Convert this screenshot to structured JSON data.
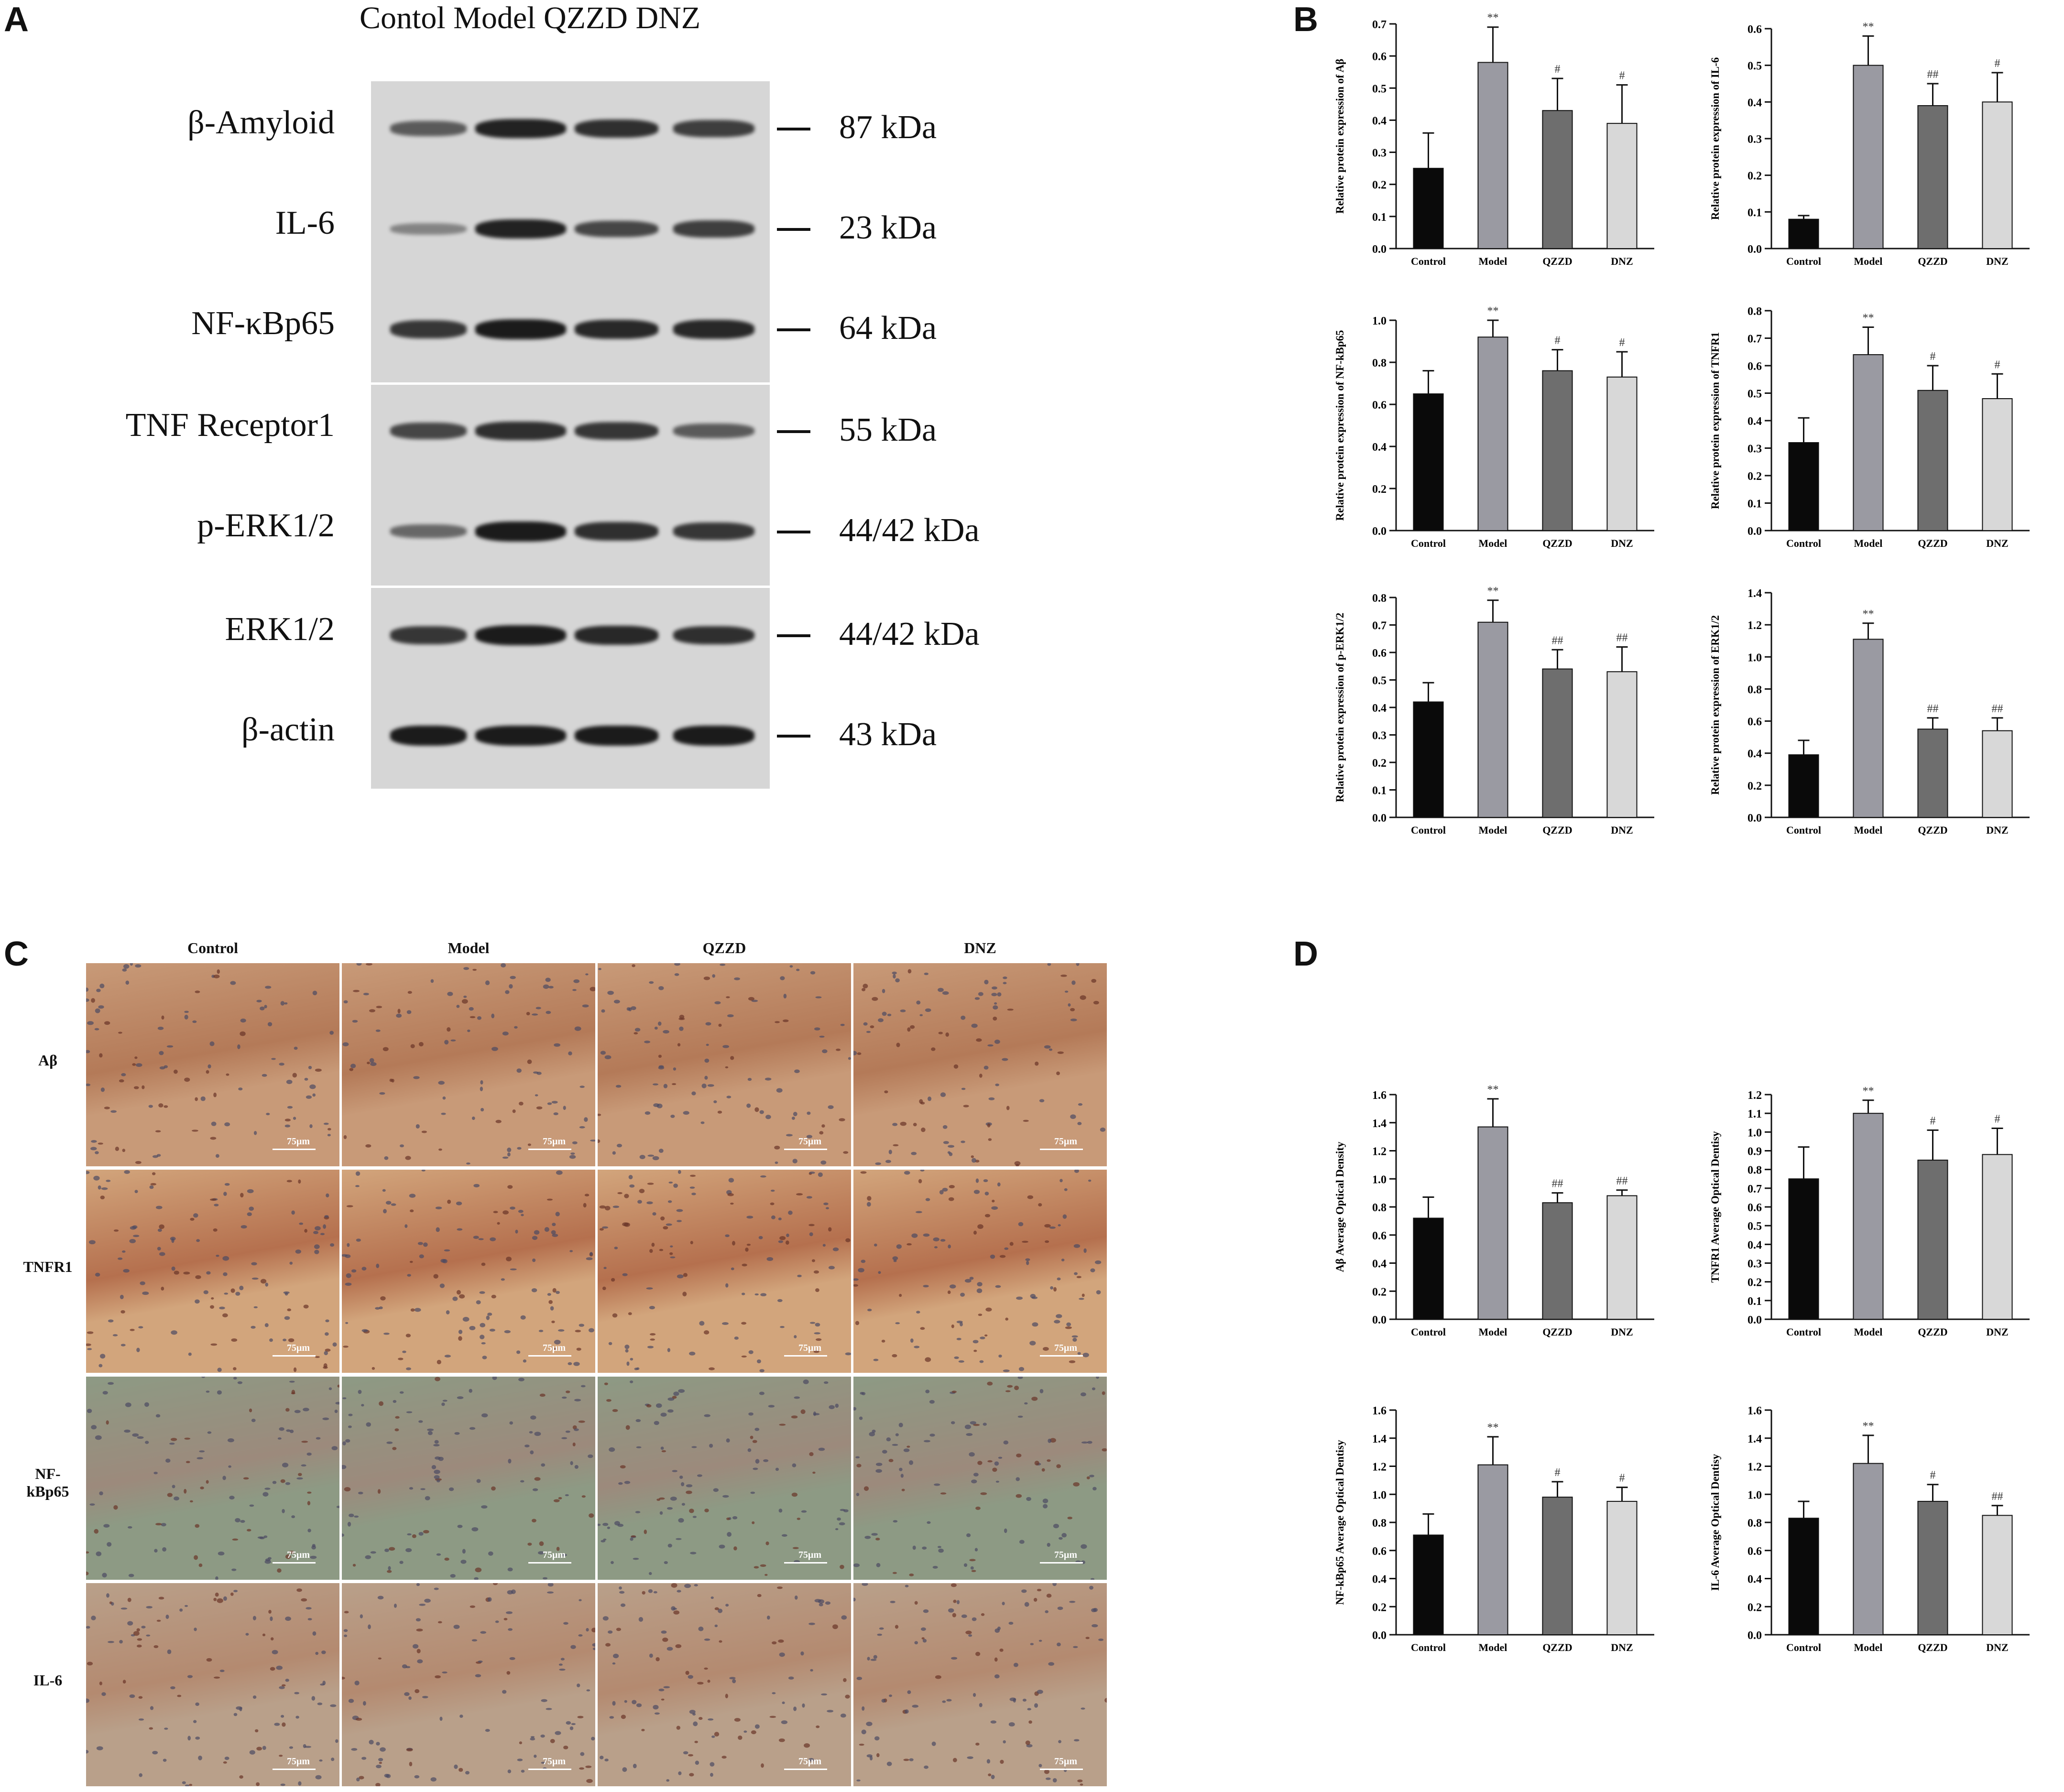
{
  "panel_labels": {
    "a": "A",
    "b": "B",
    "c": "C",
    "d": "D"
  },
  "western_blot": {
    "lane_header": "Contol Model QZZD DNZ",
    "rows": [
      {
        "protein": "β-Amyloid",
        "size": "87 kDa",
        "intensity": [
          0.55,
          0.95,
          0.85,
          0.75
        ]
      },
      {
        "protein": "IL-6",
        "size": "23 kDa",
        "intensity": [
          0.25,
          0.95,
          0.7,
          0.75
        ]
      },
      {
        "protein": "NF-κBp65",
        "size": "64 kDa",
        "intensity": [
          0.8,
          1.0,
          0.9,
          0.9
        ]
      },
      {
        "protein": "TNF Receptor1",
        "size": "55 kDa",
        "intensity": [
          0.7,
          0.85,
          0.8,
          0.55
        ]
      },
      {
        "protein": "p-ERK1/2",
        "size": "44/42 kDa",
        "intensity": [
          0.45,
          1.0,
          0.85,
          0.8
        ]
      },
      {
        "protein": "ERK1/2",
        "size": "44/42 kDa",
        "intensity": [
          0.8,
          1.0,
          0.9,
          0.85
        ]
      },
      {
        "protein": "β-actin",
        "size": "43 kDa",
        "intensity": [
          1.0,
          1.0,
          1.0,
          1.0
        ]
      }
    ]
  },
  "chart_data": [
    {
      "type": "bar",
      "panel": "B",
      "categories": [
        "Control",
        "Model",
        "QZZD",
        "DNZ"
      ],
      "values": [
        0.25,
        0.58,
        0.43,
        0.39
      ],
      "errors": [
        0.11,
        0.11,
        0.1,
        0.12
      ],
      "annotations": [
        "",
        "**",
        "#",
        "#"
      ],
      "ylabel": "Relative protein expression of Aβ",
      "ylim": [
        0,
        0.7
      ],
      "yticks": [
        "0.0",
        "0.1",
        "0.2",
        "0.3",
        "0.4",
        "0.5",
        "0.6",
        "0.7"
      ]
    },
    {
      "type": "bar",
      "panel": "B",
      "categories": [
        "Control",
        "Model",
        "QZZD",
        "DNZ"
      ],
      "values": [
        0.08,
        0.5,
        0.39,
        0.4
      ],
      "errors": [
        0.01,
        0.08,
        0.06,
        0.08
      ],
      "annotations": [
        "",
        "**",
        "##",
        "#"
      ],
      "ylabel": "Relative protein expression of IL-6",
      "ylim": [
        0,
        0.6
      ],
      "yticks": [
        "0.0",
        "0.1",
        "0.2",
        "0.3",
        "0.4",
        "0.5",
        "0.6"
      ]
    },
    {
      "type": "bar",
      "panel": "B",
      "categories": [
        "Control",
        "Model",
        "QZZD",
        "DNZ"
      ],
      "values": [
        0.65,
        0.92,
        0.76,
        0.73
      ],
      "errors": [
        0.11,
        0.08,
        0.1,
        0.12
      ],
      "annotations": [
        "",
        "**",
        "#",
        "#"
      ],
      "ylabel": "Relative protein expression of NF-kBp65",
      "ylim": [
        0,
        1.0
      ],
      "yticks": [
        "0.0",
        "0.2",
        "0.4",
        "0.6",
        "0.8",
        "1.0"
      ]
    },
    {
      "type": "bar",
      "panel": "B",
      "categories": [
        "Control",
        "Model",
        "QZZD",
        "DNZ"
      ],
      "values": [
        0.32,
        0.64,
        0.51,
        0.48
      ],
      "errors": [
        0.09,
        0.1,
        0.09,
        0.09
      ],
      "annotations": [
        "",
        "**",
        "#",
        "#"
      ],
      "ylabel": "Relative protein expression of TNFR1",
      "ylim": [
        0,
        0.8
      ],
      "yticks": [
        "0.0",
        "0.1",
        "0.2",
        "0.3",
        "0.4",
        "0.5",
        "0.6",
        "0.7",
        "0.8"
      ]
    },
    {
      "type": "bar",
      "panel": "B",
      "categories": [
        "Control",
        "Model",
        "QZZD",
        "DNZ"
      ],
      "values": [
        0.42,
        0.71,
        0.54,
        0.53
      ],
      "errors": [
        0.07,
        0.08,
        0.07,
        0.09
      ],
      "annotations": [
        "",
        "**",
        "##",
        "##"
      ],
      "ylabel": "Relative protein expression of p-ERK1/2",
      "ylim": [
        0,
        0.8
      ],
      "yticks": [
        "0.0",
        "0.1",
        "0.2",
        "0.3",
        "0.4",
        "0.5",
        "0.6",
        "0.7",
        "0.8"
      ]
    },
    {
      "type": "bar",
      "panel": "B",
      "categories": [
        "Control",
        "Model",
        "QZZD",
        "DNZ"
      ],
      "values": [
        0.39,
        1.11,
        0.55,
        0.54
      ],
      "errors": [
        0.09,
        0.1,
        0.07,
        0.08
      ],
      "annotations": [
        "",
        "**",
        "##",
        "##"
      ],
      "ylabel": "Relative protein expression of ERK1/2",
      "ylim": [
        0,
        1.4
      ],
      "yticks": [
        "0.0",
        "0.2",
        "0.4",
        "0.6",
        "0.8",
        "1.0",
        "1.2",
        "1.4"
      ]
    },
    {
      "type": "bar",
      "panel": "D",
      "categories": [
        "Control",
        "Model",
        "QZZD",
        "DNZ"
      ],
      "values": [
        0.72,
        1.37,
        0.83,
        0.88
      ],
      "errors": [
        0.15,
        0.2,
        0.07,
        0.04
      ],
      "annotations": [
        "",
        "**",
        "##",
        "##"
      ],
      "ylabel": "Aβ Average Optical Density",
      "ylim": [
        0,
        1.6
      ],
      "yticks": [
        "0.0",
        "0.2",
        "0.4",
        "0.6",
        "0.8",
        "1.0",
        "1.2",
        "1.4",
        "1.6"
      ]
    },
    {
      "type": "bar",
      "panel": "D",
      "categories": [
        "Control",
        "Model",
        "QZZD",
        "DNZ"
      ],
      "values": [
        0.75,
        1.1,
        0.85,
        0.88
      ],
      "errors": [
        0.17,
        0.07,
        0.16,
        0.14
      ],
      "annotations": [
        "",
        "**",
        "#",
        "#"
      ],
      "ylabel": "TNFR1 Average Optical Dentisy",
      "ylim": [
        0,
        1.2
      ],
      "yticks": [
        "0.0",
        "0.1",
        "0.2",
        "0.3",
        "0.4",
        "0.5",
        "0.6",
        "0.7",
        "0.8",
        "0.9",
        "1.0",
        "1.1",
        "1.2"
      ]
    },
    {
      "type": "bar",
      "panel": "D",
      "categories": [
        "Control",
        "Model",
        "QZZD",
        "DNZ"
      ],
      "values": [
        0.71,
        1.21,
        0.98,
        0.95
      ],
      "errors": [
        0.15,
        0.2,
        0.11,
        0.1
      ],
      "annotations": [
        "",
        "**",
        "#",
        "#"
      ],
      "ylabel": "NF-kBp65 Average Optical Dentisy",
      "ylim": [
        0,
        1.6
      ],
      "yticks": [
        "0.0",
        "0.2",
        "0.4",
        "0.6",
        "0.8",
        "1.0",
        "1.2",
        "1.4",
        "1.6"
      ]
    },
    {
      "type": "bar",
      "panel": "D",
      "categories": [
        "Control",
        "Model",
        "QZZD",
        "DNZ"
      ],
      "values": [
        0.83,
        1.22,
        0.95,
        0.85
      ],
      "errors": [
        0.12,
        0.2,
        0.12,
        0.07
      ],
      "annotations": [
        "",
        "**",
        "#",
        "##"
      ],
      "ylabel": "IL-6 Average Optical Dentisy",
      "ylim": [
        0,
        1.6
      ],
      "yticks": [
        "0.0",
        "0.2",
        "0.4",
        "0.6",
        "0.8",
        "1.0",
        "1.2",
        "1.4",
        "1.6"
      ]
    }
  ],
  "bar_colors": [
    "#0a0a0a",
    "#9a9aa2",
    "#6e6e6e",
    "#d8d8d8"
  ],
  "ihc_grid": {
    "columns": [
      "Control",
      "Model",
      "QZZD",
      "DNZ"
    ],
    "rows": [
      {
        "label": "Aβ",
        "tone": "#c89a78",
        "band": "#b47a58",
        "dot_density": 0.5
      },
      {
        "label": "TNFR1",
        "tone": "#d2a57c",
        "band": "#b5704e",
        "dot_density": 0.7
      },
      {
        "label": "NF-kBp65",
        "tone": "#8d9a84",
        "band": "#9c8a7c",
        "dot_density": 0.6
      },
      {
        "label": "IL-6",
        "tone": "#b9a08a",
        "band": "#b48a70",
        "dot_density": 0.6
      }
    ],
    "scale_bar": "75μm"
  }
}
